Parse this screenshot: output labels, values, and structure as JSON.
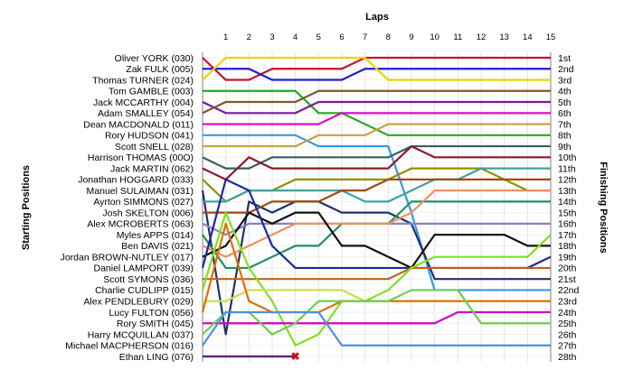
{
  "chart_data": {
    "type": "line",
    "xlabel": "Laps",
    "ylabel_left": "Starting Positions",
    "ylabel_right": "Finishing Positions",
    "laps": [
      1,
      2,
      3,
      4,
      5,
      6,
      7,
      8,
      9,
      10,
      11,
      12,
      13,
      14,
      15
    ],
    "drivers": [
      "Oliver YORK (030)",
      "Zak FULK (005)",
      "Thomas TURNER (024)",
      "Tom GAMBLE (003)",
      "Jack MCCARTHY (004)",
      "Adam SMALLEY (054)",
      "Dean MACDONALD (011)",
      "Rory HUDSON (041)",
      "Scott SNELL (028)",
      "Harrison THOMAS (00O)",
      "Jack MARTIN (062)",
      "Jonathan HOGGARD (033)",
      "Manuel SULAIMAN (031)",
      "Ayrton SIMMONS (027)",
      "Josh SKELTON (006)",
      "Alex MCROBERTS (063)",
      "Myles APPS (014)",
      "Ben DAVIS (021)",
      "Jordan BROWN-NUTLEY (017)",
      "Daniel LAMPORT (039)",
      "Scott SYMONS (036)",
      "Charlie CUDLIPP (015)",
      "Alex PENDLEBURY (029)",
      "Lucy FULTON (056)",
      "Rory SMITH (045)",
      "Harry MCQUILLAN (037)",
      "Michael MACPHERSON (016)",
      "Ethan LING (076)"
    ],
    "finishing": [
      "1st",
      "2nd",
      "3rd",
      "4th",
      "5th",
      "6th",
      "7th",
      "8th",
      "9th",
      "10th",
      "11th",
      "12th",
      "13th",
      "14th",
      "15th",
      "16th",
      "17th",
      "18th",
      "19th",
      "20th",
      "21st",
      "22nd",
      "23rd",
      "24th",
      "25th",
      "26th",
      "27th",
      "28th"
    ],
    "series": [
      {
        "name": "Oliver YORK (030)",
        "color": "#c8102e",
        "positions": [
          1,
          3,
          3,
          2,
          2,
          2,
          2,
          1,
          1,
          1,
          1,
          1,
          1,
          1,
          1,
          1
        ]
      },
      {
        "name": "Zak FULK (005)",
        "color": "#1f1fc8",
        "positions": [
          2,
          2,
          2,
          3,
          3,
          3,
          3,
          2,
          2,
          2,
          2,
          2,
          2,
          2,
          2,
          2
        ]
      },
      {
        "name": "Thomas TURNER (024)",
        "color": "#e8d400",
        "positions": [
          3,
          1,
          1,
          1,
          1,
          1,
          1,
          1,
          3,
          3,
          3,
          3,
          3,
          3,
          3,
          3
        ]
      },
      {
        "name": "Tom GAMBLE (003)",
        "color": "#22aa22",
        "positions": [
          4,
          4,
          4,
          4,
          4,
          6,
          6,
          7,
          8,
          8,
          8,
          8,
          8,
          8,
          8,
          8
        ]
      },
      {
        "name": "Jack MCCARTHY (004)",
        "color": "#7a1a9a",
        "positions": [
          5,
          6,
          6,
          6,
          6,
          5,
          5,
          5,
          5,
          5,
          5,
          5,
          5,
          5,
          5,
          5
        ]
      },
      {
        "name": "Adam SMALLEY (054)",
        "color": "#7a5a2a",
        "positions": [
          6,
          5,
          5,
          5,
          5,
          4,
          4,
          4,
          4,
          4,
          4,
          4,
          4,
          4,
          4,
          4
        ]
      },
      {
        "name": "Dean MACDONALD (011)",
        "color": "#e000c8",
        "positions": [
          7,
          7,
          7,
          7,
          7,
          7,
          6,
          6,
          6,
          6,
          6,
          6,
          6,
          6,
          6,
          6
        ]
      },
      {
        "name": "Rory HUDSON (041)",
        "color": "#3399e6",
        "positions": [
          8,
          8,
          8,
          8,
          8,
          9,
          9,
          9,
          9,
          15,
          22,
          22,
          22,
          22,
          22,
          22
        ]
      },
      {
        "name": "Scott SNELL (028)",
        "color": "#c8a040",
        "positions": [
          9,
          9,
          9,
          9,
          9,
          8,
          8,
          8,
          7,
          7,
          7,
          7,
          7,
          7,
          7,
          7
        ]
      },
      {
        "name": "Harrison THOMAS (00O)",
        "color": "#3a5f5f",
        "positions": [
          10,
          11,
          11,
          10,
          10,
          10,
          10,
          10,
          10,
          9,
          9,
          9,
          9,
          9,
          9,
          9
        ]
      },
      {
        "name": "Jack MARTIN (062)",
        "color": "#8a1a2a",
        "positions": [
          11,
          12,
          10,
          11,
          11,
          11,
          11,
          11,
          11,
          9,
          10,
          10,
          10,
          10,
          10,
          10
        ]
      },
      {
        "name": "Jonathan HOGGARD (033)",
        "color": "#909000",
        "positions": [
          12,
          14,
          13,
          13,
          12,
          12,
          12,
          12,
          12,
          11,
          11,
          11,
          11,
          12,
          13,
          13
        ]
      },
      {
        "name": "Manuel SULAIMAN (031)",
        "color": "#203070",
        "positions": [
          13,
          26,
          14,
          15,
          14,
          14,
          15,
          15,
          15,
          16,
          21,
          21,
          21,
          21,
          21,
          21
        ]
      },
      {
        "name": "Ayrton SIMMONS (027)",
        "color": "#40a0a0",
        "positions": [
          14,
          14,
          13,
          13,
          13,
          13,
          13,
          14,
          14,
          13,
          12,
          12,
          11,
          11,
          11,
          11
        ]
      },
      {
        "name": "Josh SKELTON (006)",
        "color": "#a04a10",
        "positions": [
          15,
          15,
          15,
          14,
          14,
          14,
          13,
          13,
          12,
          12,
          12,
          12,
          12,
          12,
          12,
          12
        ]
      },
      {
        "name": "Alex MCROBERTS (063)",
        "color": "#8a80c8",
        "positions": [
          16,
          17,
          16,
          16,
          16,
          16,
          16,
          16,
          16,
          16,
          16,
          16,
          16,
          16,
          16,
          16
        ]
      },
      {
        "name": "Myles APPS (014)",
        "color": "#209060",
        "positions": [
          17,
          20,
          20,
          19,
          18,
          18,
          16,
          16,
          16,
          14,
          14,
          14,
          14,
          14,
          14,
          14
        ]
      },
      {
        "name": "Ben DAVIS (021)",
        "color": "#f09060",
        "positions": [
          18,
          19,
          18,
          17,
          16,
          16,
          16,
          16,
          16,
          15,
          13,
          13,
          13,
          13,
          13,
          13
        ]
      },
      {
        "name": "Jordan BROWN-NUTLEY (017)",
        "color": "#101010",
        "positions": [
          19,
          18,
          15,
          16,
          15,
          15,
          18,
          18,
          19,
          20,
          17,
          17,
          17,
          17,
          18,
          18
        ]
      },
      {
        "name": "Daniel LAMPORT (039)",
        "color": "#1a2aa0",
        "positions": [
          20,
          12,
          13,
          18,
          20,
          20,
          20,
          20,
          20,
          20,
          20,
          20,
          20,
          20,
          20,
          19
        ]
      },
      {
        "name": "Scott SYMONS (036)",
        "color": "#c06020",
        "positions": [
          21,
          21,
          21,
          21,
          21,
          21,
          21,
          21,
          21,
          20,
          20,
          20,
          20,
          20,
          20,
          20
        ]
      },
      {
        "name": "Charlie CUDLIPP (015)",
        "color": "#80e020",
        "positions": [
          22,
          15,
          20,
          23,
          27,
          26,
          23,
          23,
          22,
          20,
          19,
          19,
          19,
          19,
          19,
          17
        ]
      },
      {
        "name": "Alex PENDLEBURY (029)",
        "color": "#c8e040",
        "positions": [
          23,
          23,
          22,
          22,
          22,
          22,
          22,
          23,
          23,
          23,
          23,
          23,
          23,
          23,
          23,
          23
        ]
      },
      {
        "name": "Lucy FULTON (056)",
        "color": "#e07000",
        "positions": [
          24,
          16,
          23,
          24,
          24,
          24,
          23,
          23,
          23,
          23,
          23,
          23,
          23,
          23,
          23,
          23
        ]
      },
      {
        "name": "Rory SMITH (045)",
        "color": "#d000d0",
        "positions": [
          25,
          25,
          25,
          25,
          25,
          25,
          25,
          25,
          25,
          25,
          25,
          24,
          24,
          24,
          24,
          24
        ]
      },
      {
        "name": "Harry MCQUILLAN (037)",
        "color": "#6ad04a",
        "positions": [
          26,
          24,
          24,
          26,
          25,
          23,
          23,
          23,
          23,
          22,
          22,
          22,
          25,
          25,
          25,
          25
        ]
      },
      {
        "name": "Michael MACPHERSON (016)",
        "color": "#4a90e0",
        "positions": [
          27,
          24,
          24,
          24,
          24,
          24,
          27,
          27,
          27,
          27,
          27,
          27,
          27,
          27,
          27,
          27
        ]
      },
      {
        "name": "Ethan LING (076)",
        "color": "#60008a",
        "positions": [
          28,
          28,
          28,
          28,
          28
        ]
      }
    ],
    "retired_marker": {
      "driver": "Ethan LING (076)",
      "lap": 4,
      "symbol": "✖",
      "color": "#d01010"
    },
    "grid": true
  }
}
